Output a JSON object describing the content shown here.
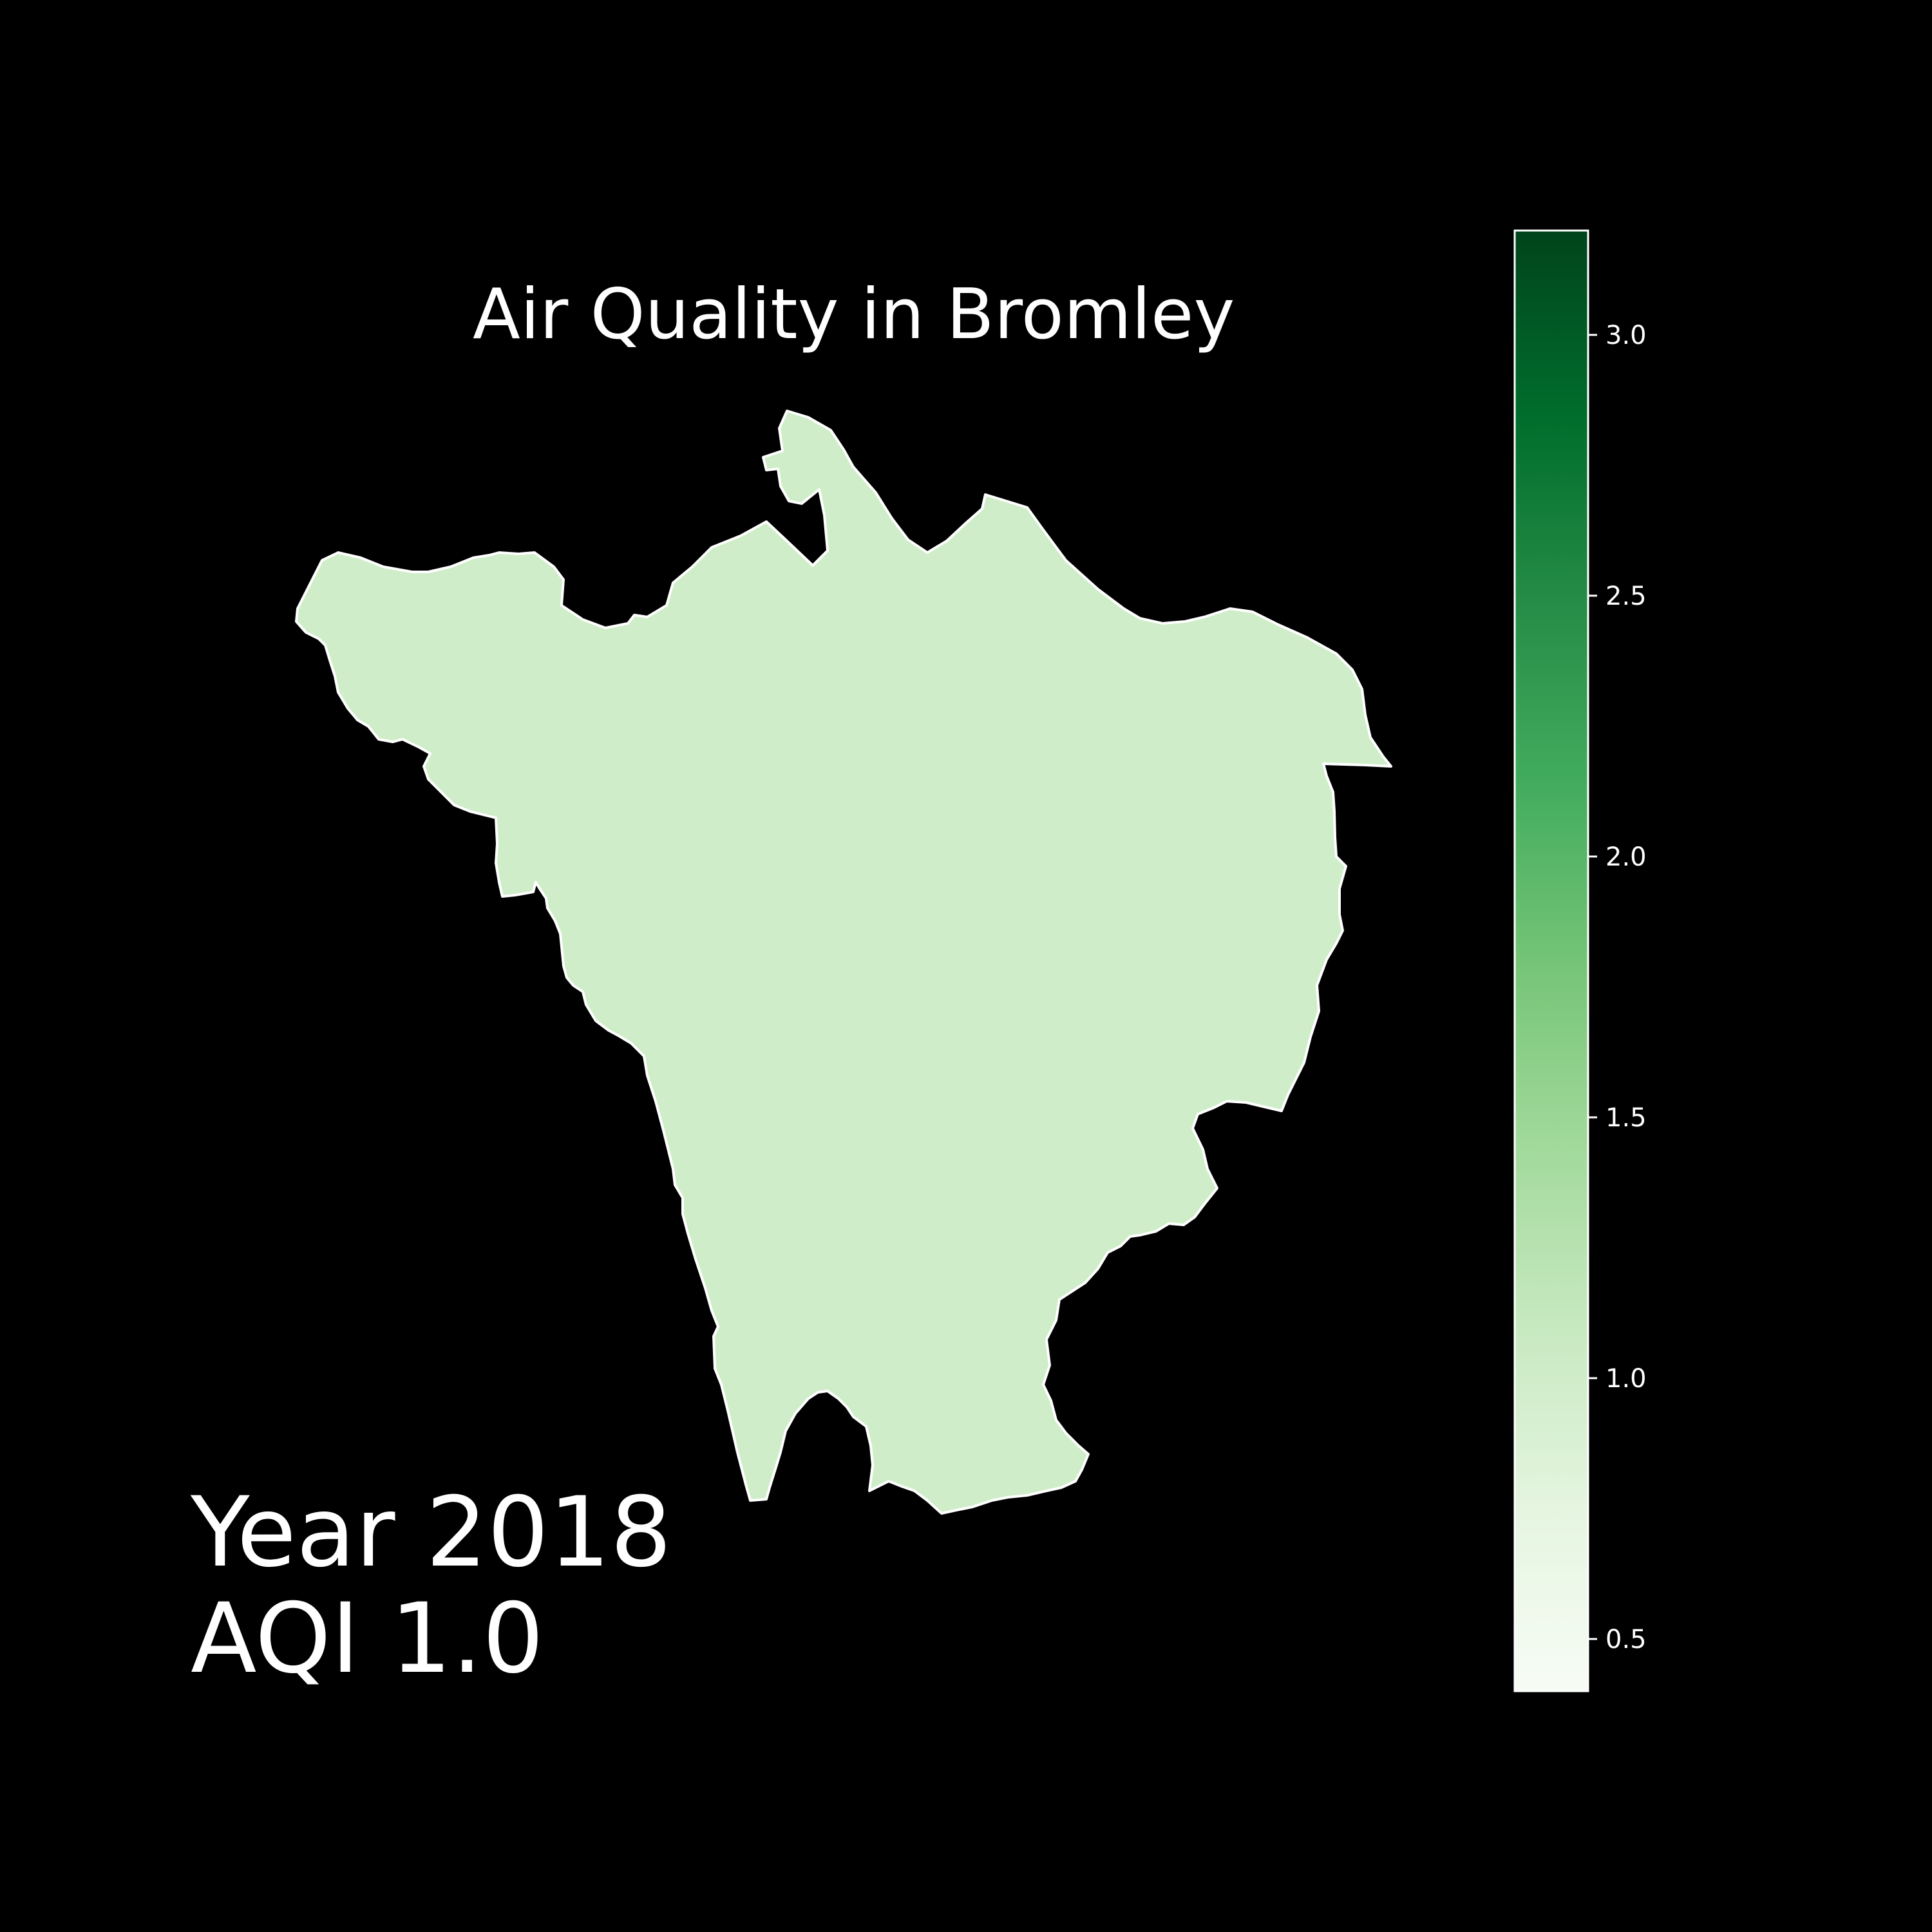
{
  "title": "Air Quality in Bromley",
  "year_label": "Year 2018",
  "aqi_label": "AQI 1.0",
  "map": {
    "region": "Bromley",
    "aqi_value": 1.0,
    "fill_color": "#d0edca",
    "edge_color": "#ffffff",
    "background": "#000000"
  },
  "colorbar": {
    "colormap": "Greens",
    "range": [
      0.4,
      3.2
    ],
    "ticks": [
      0.5,
      1.0,
      1.5,
      2.0,
      2.5,
      3.0
    ],
    "tick_labels": [
      "0.5",
      "1.0",
      "1.5",
      "2.0",
      "2.5",
      "3.0"
    ],
    "colors": [
      "#f7fcf5",
      "#e5f5e0",
      "#c7e9c0",
      "#a1d99b",
      "#74c476",
      "#41ab5d",
      "#238b45",
      "#006d2c",
      "#00441b"
    ]
  }
}
